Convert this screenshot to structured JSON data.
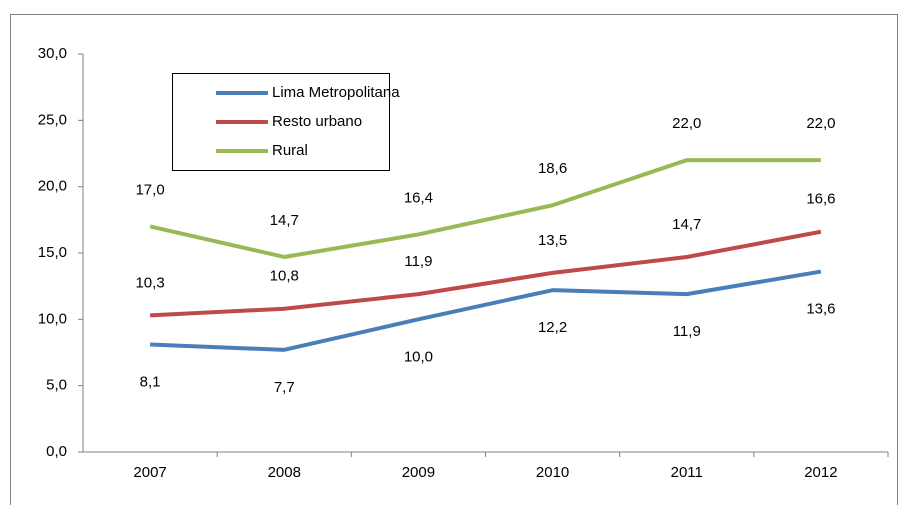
{
  "chart_data": {
    "type": "line",
    "categories": [
      "2007",
      "2008",
      "2009",
      "2010",
      "2011",
      "2012"
    ],
    "series": [
      {
        "name": "Lima Metropolitana",
        "color": "#4a7ebb",
        "values": [
          8.1,
          7.7,
          10.0,
          12.2,
          11.9,
          13.6
        ],
        "value_labels": [
          "8,1",
          "7,7",
          "10,0",
          "12,2",
          "11,9",
          "13,6"
        ]
      },
      {
        "name": "Resto urbano",
        "color": "#be4b48",
        "values": [
          10.3,
          10.8,
          11.9,
          13.5,
          14.7,
          16.6
        ],
        "value_labels": [
          "10,3",
          "10,8",
          "11,9",
          "13,5",
          "14,7",
          "16,6"
        ]
      },
      {
        "name": "Rural",
        "color": "#98b954",
        "values": [
          17.0,
          14.7,
          16.4,
          18.6,
          22.0,
          22.0
        ],
        "value_labels": [
          "17,0",
          "14,7",
          "16,4",
          "18,6",
          "22,0",
          "22,0"
        ]
      }
    ],
    "ylim": [
      0,
      30
    ],
    "yticks": [
      {
        "value": 0,
        "label": "0,0"
      },
      {
        "value": 5,
        "label": "5,0"
      },
      {
        "value": 10,
        "label": "10,0"
      },
      {
        "value": 15,
        "label": "15,0"
      },
      {
        "value": 20,
        "label": "20,0"
      },
      {
        "value": 25,
        "label": "25,0"
      },
      {
        "value": 30,
        "label": "30,0"
      }
    ],
    "legend": "upper left"
  }
}
